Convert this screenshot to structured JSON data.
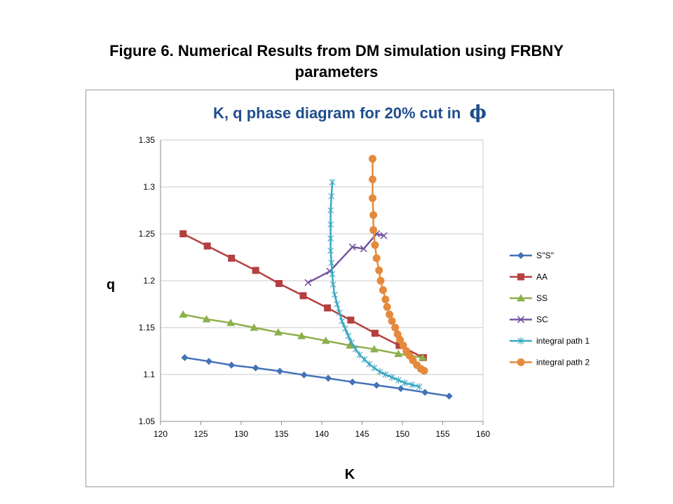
{
  "slide": {
    "title_line1": "Figure 6. Numerical Results from DM simulation using FRBNY",
    "title_line2": "parameters"
  },
  "chart_data": {
    "type": "line",
    "title_prefix": "K, q phase diagram for 20% cut in",
    "title_symbol": "ϕ",
    "xlabel": "K",
    "ylabel": "q",
    "xlim": [
      120,
      160
    ],
    "ylim": [
      1.05,
      1.35
    ],
    "xticks": [
      "120",
      "125",
      "130",
      "135",
      "140",
      "145",
      "150",
      "155",
      "160"
    ],
    "yticks": [
      "1.05",
      "1.1",
      "1.15",
      "1.2",
      "1.25",
      "1.3",
      "1.35"
    ],
    "grid": "horizontal",
    "legend_position": "right",
    "series": [
      {
        "name": "S''S''",
        "color": "#4372b8",
        "marker": "diamond",
        "x": [
          123,
          126,
          128.8,
          131.8,
          134.8,
          137.8,
          140.8,
          143.8,
          146.8,
          149.8,
          152.8,
          155.8
        ],
        "y": [
          1.118,
          1.114,
          1.11,
          1.107,
          1.1035,
          1.0995,
          1.096,
          1.092,
          1.0885,
          1.085,
          1.081,
          1.077
        ]
      },
      {
        "name": "AA",
        "color": "#b44040",
        "marker": "square",
        "x": [
          122.8,
          125.8,
          128.8,
          131.8,
          134.7,
          137.7,
          140.7,
          143.6,
          146.6,
          149.6,
          152.6
        ],
        "y": [
          1.25,
          1.237,
          1.224,
          1.211,
          1.197,
          1.184,
          1.171,
          1.158,
          1.144,
          1.131,
          1.118
        ]
      },
      {
        "name": "SS",
        "color": "#8cb04a",
        "marker": "triangle",
        "x": [
          122.8,
          125.7,
          128.7,
          131.6,
          134.6,
          137.5,
          140.5,
          143.5,
          146.5,
          149.5,
          152.5
        ],
        "y": [
          1.164,
          1.159,
          1.155,
          1.15,
          1.145,
          1.141,
          1.136,
          1.131,
          1.127,
          1.122,
          1.118
        ]
      },
      {
        "name": "SC",
        "color": "#7555a0",
        "marker": "x",
        "x": [
          138.3,
          141,
          143.8,
          145.2,
          146.8,
          147.7
        ],
        "y": [
          1.198,
          1.21,
          1.236,
          1.234,
          1.25,
          1.248
        ]
      },
      {
        "name": "integral  path 1",
        "color": "#3aa7c2",
        "marker": "star",
        "x": [
          141.3,
          141.2,
          141.1,
          141.1,
          141.1,
          141.1,
          141.2,
          141.3,
          141.4,
          141.6,
          141.9,
          142.2,
          142.5,
          142.9,
          143.3,
          143.7,
          144.2,
          144.7,
          145.3,
          145.9,
          146.5,
          147.2,
          147.9,
          148.7,
          149.5,
          150.3,
          151.2,
          152.1
        ],
        "y": [
          1.305,
          1.29,
          1.275,
          1.26,
          1.245,
          1.232,
          1.219,
          1.207,
          1.196,
          1.185,
          1.175,
          1.166,
          1.157,
          1.149,
          1.141,
          1.134,
          1.127,
          1.121,
          1.116,
          1.111,
          1.107,
          1.103,
          1.1,
          1.097,
          1.094,
          1.091,
          1.089,
          1.087
        ]
      },
      {
        "name": "integral path 2",
        "color": "#e58a3c",
        "marker": "circle",
        "x": [
          146.3,
          146.3,
          146.3,
          146.4,
          146.4,
          146.6,
          146.8,
          147.1,
          147.3,
          147.6,
          147.9,
          148.1,
          148.4,
          148.7,
          149.1,
          149.4,
          149.7,
          150.1,
          150.5,
          150.9,
          151.3,
          151.8,
          152.3,
          152.7
        ],
        "y": [
          1.33,
          1.308,
          1.288,
          1.27,
          1.254,
          1.238,
          1.224,
          1.211,
          1.2,
          1.19,
          1.18,
          1.172,
          1.164,
          1.157,
          1.15,
          1.143,
          1.137,
          1.131,
          1.125,
          1.12,
          1.115,
          1.11,
          1.106,
          1.104
        ]
      }
    ]
  }
}
